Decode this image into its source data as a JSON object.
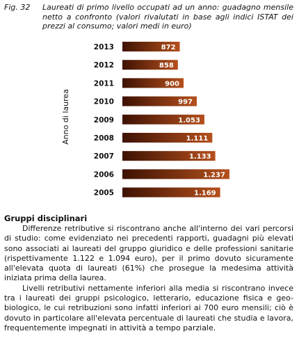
{
  "caption": {
    "fig_label": "Fig. 32",
    "text": "Laureati di primo livello occupati ad un anno: guadagno mensile netto a confronto (valori rivalutati in base agli indici ISTAT dei prezzi al consumo; valori medi in euro)"
  },
  "chart_data": {
    "type": "bar",
    "orientation": "horizontal",
    "title": "",
    "xlabel": "",
    "ylabel": "Anno di laurea",
    "categories": [
      "2013",
      "2012",
      "2011",
      "2010",
      "2009",
      "2008",
      "2007",
      "2006",
      "2005"
    ],
    "values": [
      872,
      858,
      900,
      997,
      1053,
      1111,
      1133,
      1237,
      1169
    ],
    "value_labels": [
      "872",
      "858",
      "900",
      "997",
      "1.053",
      "1.111",
      "1.133",
      "1.237",
      "1.169"
    ],
    "xlim": [
      450,
      1300
    ],
    "grid": false,
    "bar_color_dark": "#3e1203",
    "bar_color_light": "#b5501d"
  },
  "section": {
    "heading": "Gruppi disciplinari",
    "paragraphs": [
      "Differenze retributive si riscontrano anche all'interno dei vari percorsi di studio: come evidenziato nei precedenti rapporti, guadagni più elevati sono associati ai laureati del gruppo giuridico e delle professioni sanitarie (rispettivamente 1.122 e 1.094 euro), per il primo dovuto sicuramente all'elevata quota di laureati (61%) che prosegue la medesima attività iniziata prima della laurea.",
      "Livelli retributivi nettamente inferiori alla media si riscontrano invece tra i laureati dei gruppi psicologico, letterario, educazione fisica e geo-biologico, le cui retribuzioni sono infatti inferiori ai 700 euro mensili; ciò è dovuto in particolare all'elevata percentuale di laureati che studia e lavora, frequentemente impegnati in attività a tempo parziale."
    ]
  }
}
